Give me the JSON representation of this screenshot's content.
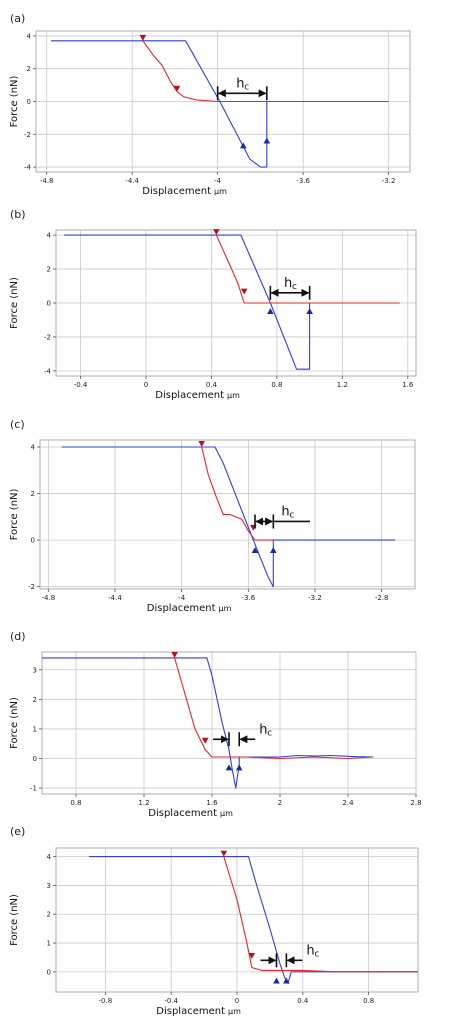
{
  "colors": {
    "approach": "#e4262b",
    "retract": "#2f3fd8",
    "grid": "#c8c8c8",
    "marker_red": "#b5121b",
    "marker_blue": "#1a2a9e"
  },
  "chart_data": [
    {
      "type": "line",
      "panel_label": "(a)",
      "xlabel": "Displacement",
      "xunit": "μm",
      "ylabel": "Force (nN)",
      "xlim": [
        -4.85,
        -3.1
      ],
      "ylim": [
        -4.3,
        4.3
      ],
      "xticks": [
        -4.8,
        -4.4,
        -4,
        -3.6,
        -3.2
      ],
      "xtick_labels": [
        "-4.8",
        "-4.4",
        "-4",
        "-3.6",
        "-3.2"
      ],
      "yticks": [
        -4,
        -2,
        0,
        2,
        4
      ],
      "ytick_labels": [
        "-4",
        "-2",
        "0",
        "2",
        "4"
      ],
      "grid": true,
      "series": [
        {
          "color_key": "retract",
          "x": [
            -4.78,
            -4.15,
            -3.99,
            -3.85,
            -3.83,
            -3.8,
            -3.77,
            -3.77,
            -3.2
          ],
          "y": [
            3.7,
            3.7,
            0,
            -3.5,
            -3.7,
            -4.0,
            -4.0,
            0,
            0
          ]
        },
        {
          "color_key": "approach",
          "x": [
            -4.35,
            -4.3,
            -4.26,
            -4.22,
            -4.19,
            -4.16,
            -4.1,
            -4.0,
            -3.77,
            -3.2
          ],
          "y": [
            3.7,
            2.8,
            2.2,
            1.2,
            0.6,
            0.3,
            0.1,
            0,
            0,
            0
          ]
        }
      ],
      "markers": [
        {
          "color_key": "marker_red",
          "dir": "down",
          "x": -4.35,
          "y": 3.7
        },
        {
          "color_key": "marker_red",
          "dir": "down",
          "x": -4.19,
          "y": 0.6
        },
        {
          "color_key": "marker_blue",
          "dir": "up",
          "x": -3.88,
          "y": -2.5
        },
        {
          "color_key": "marker_blue",
          "dir": "up",
          "x": -3.77,
          "y": -2.2
        }
      ],
      "hc": {
        "type": "span",
        "x1": -4.0,
        "x2": -3.77,
        "y": 0.5,
        "text": "h",
        "sub": "c"
      }
    },
    {
      "type": "line",
      "panel_label": "(b)",
      "xlabel": "Displacement",
      "xunit": "μm",
      "ylabel": "Force (nN)",
      "xlim": [
        -0.55,
        1.65
      ],
      "ylim": [
        -4.3,
        4.3
      ],
      "xticks": [
        -0.4,
        0,
        0.4,
        0.8,
        1.2,
        1.6
      ],
      "xtick_labels": [
        "-0.4",
        "0",
        "0.4",
        "0.8",
        "1.2",
        "1.6"
      ],
      "yticks": [
        -4,
        -2,
        0,
        2,
        4
      ],
      "ytick_labels": [
        "-4",
        "-2",
        "0",
        "2",
        "4"
      ],
      "grid": true,
      "series": [
        {
          "color_key": "retract",
          "x": [
            -0.5,
            0.58,
            0.76,
            0.92,
            1.0,
            1.0,
            1.55
          ],
          "y": [
            4,
            4,
            0,
            -3.9,
            -3.9,
            0,
            0
          ]
        },
        {
          "color_key": "approach",
          "x": [
            0.43,
            0.5,
            0.56,
            0.6,
            0.65,
            1.0,
            1.55
          ],
          "y": [
            4,
            2.5,
            1.2,
            0,
            0,
            0,
            0
          ]
        }
      ],
      "markers": [
        {
          "color_key": "marker_red",
          "dir": "down",
          "x": 0.43,
          "y": 4
        },
        {
          "color_key": "marker_red",
          "dir": "down",
          "x": 0.6,
          "y": 0.5
        },
        {
          "color_key": "marker_blue",
          "dir": "up",
          "x": 0.76,
          "y": -0.3
        },
        {
          "color_key": "marker_blue",
          "dir": "up",
          "x": 1.0,
          "y": -0.3
        }
      ],
      "hc": {
        "type": "span",
        "x1": 0.76,
        "x2": 1.0,
        "y": 0.6,
        "text": "h",
        "sub": "c"
      }
    },
    {
      "type": "line",
      "panel_label": "(c)",
      "xlabel": "Displacement",
      "xunit": "μm",
      "ylabel": "Force (nN)",
      "xlim": [
        -4.85,
        -2.6
      ],
      "ylim": [
        -2.1,
        4.3
      ],
      "xticks": [
        -4.8,
        -4.4,
        -4,
        -3.6,
        -3.2,
        -2.8
      ],
      "xtick_labels": [
        "-4.8",
        "-4.4",
        "-4",
        "-3.6",
        "-3.2",
        "-2.8"
      ],
      "yticks": [
        -2,
        0,
        2,
        4
      ],
      "ytick_labels": [
        "-2",
        "0",
        "2",
        "4"
      ],
      "grid": true,
      "series": [
        {
          "color_key": "retract",
          "x": [
            -4.72,
            -3.8,
            -3.75,
            -3.57,
            -3.48,
            -3.45,
            -3.45,
            -2.72
          ],
          "y": [
            4,
            4,
            3.3,
            0,
            -1.6,
            -2.0,
            0,
            0
          ]
        },
        {
          "color_key": "approach",
          "x": [
            -3.88,
            -3.84,
            -3.79,
            -3.75,
            -3.71,
            -3.64,
            -3.6,
            -3.56,
            -3.45
          ],
          "y": [
            4,
            2.8,
            1.8,
            1.1,
            1.1,
            0.9,
            0.4,
            0,
            0
          ]
        }
      ],
      "markers": [
        {
          "color_key": "marker_red",
          "dir": "down",
          "x": -3.88,
          "y": 4
        },
        {
          "color_key": "marker_red",
          "dir": "down",
          "x": -3.57,
          "y": 0.4
        },
        {
          "color_key": "marker_blue",
          "dir": "up",
          "x": -3.56,
          "y": -0.3
        },
        {
          "color_key": "marker_blue",
          "dir": "up",
          "x": -3.45,
          "y": -0.3
        }
      ],
      "hc": {
        "type": "span_ext",
        "x1": -3.56,
        "x2": -3.45,
        "xext": -3.23,
        "y": 0.8,
        "text": "h",
        "sub": "c"
      }
    },
    {
      "type": "line",
      "panel_label": "(d)",
      "xlabel": "Displacement",
      "xunit": "μm",
      "ylabel": "Force (nN)",
      "xlim": [
        0.6,
        2.8
      ],
      "ylim": [
        -1.2,
        3.6
      ],
      "xticks": [
        0.8,
        1.2,
        1.6,
        2,
        2.4,
        2.8
      ],
      "xtick_labels": [
        "0.8",
        "1.2",
        "1.6",
        "2",
        "2.4",
        "2.8"
      ],
      "yticks": [
        -1,
        0,
        1,
        2,
        3
      ],
      "ytick_labels": [
        "-1",
        "0",
        "1",
        "2",
        "3"
      ],
      "grid": true,
      "series": [
        {
          "color_key": "retract",
          "x": [
            0.6,
            1.57,
            1.6,
            1.63,
            1.66,
            1.7,
            1.72,
            1.74,
            1.76,
            1.76,
            2.0,
            2.1,
            2.2,
            2.3,
            2.45,
            2.55
          ],
          "y": [
            3.4,
            3.4,
            2.8,
            2.0,
            1.2,
            0.3,
            -0.4,
            -1.0,
            -0.2,
            0.05,
            0.05,
            0.1,
            0.08,
            0.1,
            0.06,
            0.05
          ]
        },
        {
          "color_key": "approach",
          "x": [
            1.38,
            1.44,
            1.5,
            1.56,
            1.6,
            1.8,
            2.0,
            2.2,
            2.4,
            2.55
          ],
          "y": [
            3.4,
            2.2,
            1.0,
            0.3,
            0.05,
            0.05,
            0.0,
            0.05,
            0.0,
            0.05
          ]
        }
      ],
      "markers": [
        {
          "color_key": "marker_red",
          "dir": "down",
          "x": 1.38,
          "y": 3.4
        },
        {
          "color_key": "marker_red",
          "dir": "down",
          "x": 1.56,
          "y": 0.5
        },
        {
          "color_key": "marker_blue",
          "dir": "up",
          "x": 1.7,
          "y": -0.2
        },
        {
          "color_key": "marker_blue",
          "dir": "up",
          "x": 1.76,
          "y": -0.2
        }
      ],
      "hc": {
        "type": "inward",
        "x1": 1.7,
        "x2": 1.76,
        "y": 0.65,
        "text": "h",
        "sub": "c"
      }
    },
    {
      "type": "line",
      "panel_label": "(e)",
      "xlabel": "Displacement",
      "xunit": "μm",
      "ylabel": "Force (nN)",
      "xlim": [
        -1.1,
        1.1
      ],
      "ylim": [
        -0.7,
        4.3
      ],
      "xticks": [
        -0.8,
        -0.4,
        0,
        0.4,
        0.8
      ],
      "xtick_labels": [
        "-0.8",
        "-0.4",
        "0",
        "0.4",
        "0.8"
      ],
      "yticks": [
        0,
        1,
        2,
        3,
        4
      ],
      "ytick_labels": [
        "0",
        "1",
        "2",
        "3",
        "4"
      ],
      "grid": true,
      "series": [
        {
          "color_key": "retract",
          "x": [
            -0.9,
            0.07,
            0.12,
            0.2,
            0.26,
            0.29,
            0.31,
            0.33,
            1.1
          ],
          "y": [
            4,
            4,
            3.0,
            1.5,
            0.3,
            -0.2,
            -0.4,
            0,
            0
          ]
        },
        {
          "color_key": "approach",
          "x": [
            -0.08,
            0.0,
            0.06,
            0.09,
            0.15,
            0.4,
            0.6,
            1.1
          ],
          "y": [
            4,
            2.5,
            1.0,
            0.15,
            0.05,
            0.05,
            0.0,
            0.0
          ]
        }
      ],
      "markers": [
        {
          "color_key": "marker_red",
          "dir": "down",
          "x": -0.08,
          "y": 4
        },
        {
          "color_key": "marker_red",
          "dir": "down",
          "x": 0.09,
          "y": 0.45
        },
        {
          "color_key": "marker_blue",
          "dir": "up",
          "x": 0.24,
          "y": -0.2
        },
        {
          "color_key": "marker_blue",
          "dir": "up",
          "x": 0.3,
          "y": -0.2
        }
      ],
      "hc": {
        "type": "inward",
        "x1": 0.24,
        "x2": 0.3,
        "y": 0.4,
        "text": "h",
        "sub": "c"
      }
    }
  ]
}
